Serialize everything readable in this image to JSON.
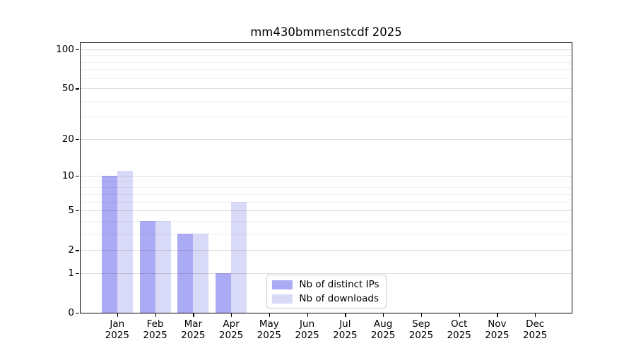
{
  "title": "mm430bmmenstcdf 2025",
  "chart_data": {
    "type": "bar",
    "title": "mm430bmmenstcdf 2025",
    "categories": [
      "Jan",
      "Feb",
      "Mar",
      "Apr",
      "May",
      "Jun",
      "Jul",
      "Aug",
      "Sep",
      "Oct",
      "Nov",
      "Dec"
    ],
    "year": "2025",
    "series": [
      {
        "name": "Nb of distinct IPs",
        "color": "#aaaaf5",
        "values": [
          10,
          4,
          3,
          1,
          0,
          0,
          0,
          0,
          0,
          0,
          0,
          0
        ]
      },
      {
        "name": "Nb of downloads",
        "color": "#d9d9f8",
        "values": [
          11,
          4,
          3,
          6,
          0,
          0,
          0,
          0,
          0,
          0,
          0,
          0
        ]
      }
    ],
    "xlabel": "",
    "ylabel": "",
    "y_axis": {
      "scale": "log10(1+x)",
      "ticks": [
        0,
        1,
        2,
        5,
        10,
        20,
        50,
        100
      ],
      "minor_gridlines": [
        3,
        4,
        6,
        7,
        8,
        9,
        30,
        40,
        60,
        70,
        80,
        90
      ],
      "range_top_approx": 113
    },
    "grid": "on",
    "legend_position": "lower center"
  }
}
